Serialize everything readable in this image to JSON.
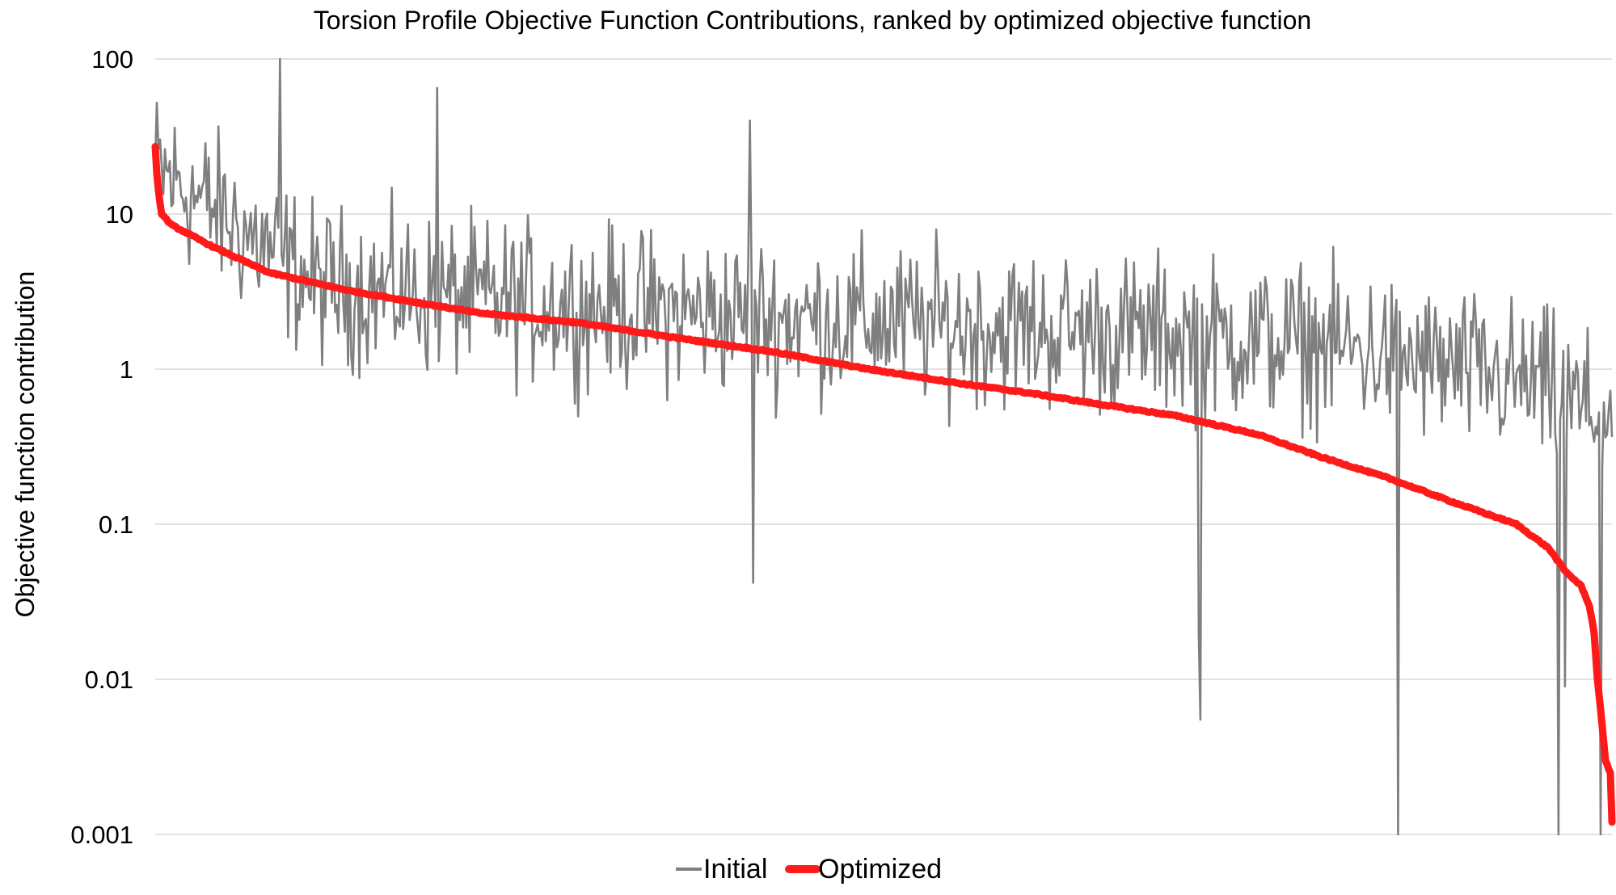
{
  "chart_data": {
    "type": "line",
    "title": "Torsion Profile Objective Function Contributions, ranked by optimized objective function",
    "ylabel": "Objective function contribution",
    "xlabel": "",
    "yscale": "log",
    "ylim": [
      0.001,
      100
    ],
    "yticks": [
      "0.001",
      "0.01",
      "0.1",
      "1",
      "10",
      "100"
    ],
    "grid": "horizontal",
    "legend_position": "bottom",
    "x_count": 900,
    "series": [
      {
        "name": "Initial",
        "color": "#7f7f7f",
        "y_anchors": [
          {
            "x": 0,
            "y": 20
          },
          {
            "x": 100,
            "y": 3.5
          },
          {
            "x": 200,
            "y": 2.8
          },
          {
            "x": 300,
            "y": 2.4
          },
          {
            "x": 400,
            "y": 2.1
          },
          {
            "x": 500,
            "y": 1.9
          },
          {
            "x": 600,
            "y": 1.7
          },
          {
            "x": 700,
            "y": 1.5
          },
          {
            "x": 750,
            "y": 1.3
          },
          {
            "x": 800,
            "y": 1.0
          },
          {
            "x": 850,
            "y": 0.8
          },
          {
            "x": 900,
            "y": 0.45
          }
        ],
        "spread_log10": 0.75,
        "notable_points": [
          {
            "x": 77,
            "y": 100
          },
          {
            "x": 174,
            "y": 65
          },
          {
            "x": 367,
            "y": 40
          },
          {
            "x": 369,
            "y": 0.042
          },
          {
            "x": 644,
            "y": 0.02
          },
          {
            "x": 645,
            "y": 0.0055
          },
          {
            "x": 767,
            "y": 0.001
          },
          {
            "x": 866,
            "y": 0.001
          },
          {
            "x": 870,
            "y": 0.009
          },
          {
            "x": 892,
            "y": 0.001
          }
        ]
      },
      {
        "name": "Optimized",
        "color": "#ff1a1a",
        "y_anchors": [
          {
            "x": 0,
            "y": 27
          },
          {
            "x": 1,
            "y": 18
          },
          {
            "x": 2,
            "y": 14
          },
          {
            "x": 4,
            "y": 10
          },
          {
            "x": 10,
            "y": 8.5
          },
          {
            "x": 20,
            "y": 7.5
          },
          {
            "x": 35,
            "y": 6.2
          },
          {
            "x": 70,
            "y": 4.2
          },
          {
            "x": 120,
            "y": 3.2
          },
          {
            "x": 170,
            "y": 2.6
          },
          {
            "x": 200,
            "y": 2.3
          },
          {
            "x": 260,
            "y": 2.0
          },
          {
            "x": 320,
            "y": 1.6
          },
          {
            "x": 380,
            "y": 1.3
          },
          {
            "x": 440,
            "y": 1.0
          },
          {
            "x": 500,
            "y": 0.8
          },
          {
            "x": 540,
            "y": 0.7
          },
          {
            "x": 580,
            "y": 0.6
          },
          {
            "x": 630,
            "y": 0.5
          },
          {
            "x": 680,
            "y": 0.38
          },
          {
            "x": 720,
            "y": 0.27
          },
          {
            "x": 760,
            "y": 0.2
          },
          {
            "x": 800,
            "y": 0.14
          },
          {
            "x": 840,
            "y": 0.1
          },
          {
            "x": 860,
            "y": 0.07
          },
          {
            "x": 870,
            "y": 0.05
          },
          {
            "x": 880,
            "y": 0.04
          },
          {
            "x": 885,
            "y": 0.03
          },
          {
            "x": 888,
            "y": 0.02
          },
          {
            "x": 890,
            "y": 0.01
          },
          {
            "x": 893,
            "y": 0.005
          },
          {
            "x": 895,
            "y": 0.003
          },
          {
            "x": 898,
            "y": 0.0025
          },
          {
            "x": 899,
            "y": 0.0012
          }
        ]
      }
    ]
  }
}
